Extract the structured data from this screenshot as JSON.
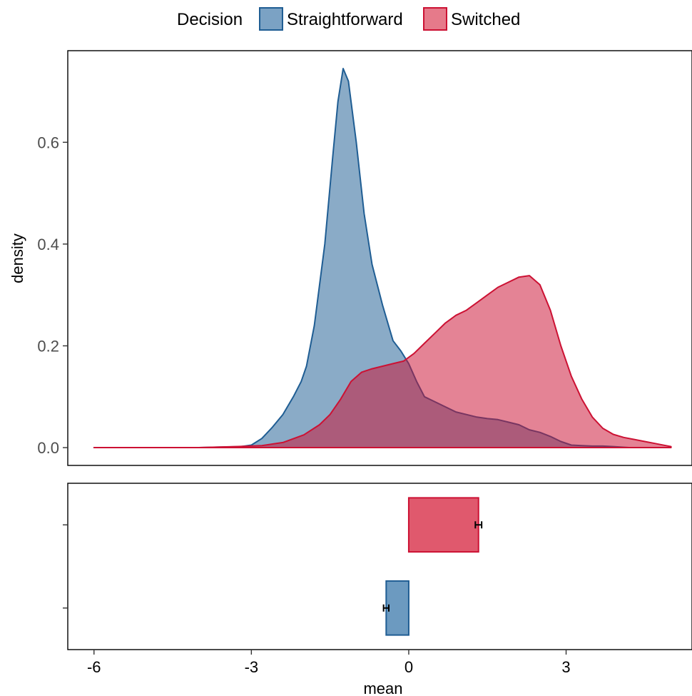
{
  "legend": {
    "title": "Decision",
    "items": [
      {
        "label": "Straightforward",
        "fill": "#7ba2c4",
        "stroke": "#1f5d93"
      },
      {
        "label": "Switched",
        "fill": "#e67a8a",
        "stroke": "#cc1133"
      }
    ]
  },
  "chart_data": [
    {
      "type": "area",
      "subtype": "density",
      "xlabel": "",
      "ylabel": "density",
      "xlim": [
        -6.5,
        5.4
      ],
      "ylim": [
        -0.035,
        0.78
      ],
      "yticks": [
        0.0,
        0.2,
        0.4,
        0.6
      ],
      "ytick_labels": [
        "0.0",
        "0.2",
        "0.4",
        "0.6"
      ],
      "series": [
        {
          "name": "Straightforward",
          "fill": "#1f5d93",
          "stroke": "#1f5d93",
          "opacity": 0.52,
          "x": [
            -6.0,
            -4.0,
            -3.2,
            -3.0,
            -2.8,
            -2.6,
            -2.4,
            -2.2,
            -2.05,
            -1.95,
            -1.8,
            -1.6,
            -1.45,
            -1.35,
            -1.25,
            -1.15,
            -1.0,
            -0.85,
            -0.7,
            -0.5,
            -0.3,
            -0.15,
            0.0,
            0.15,
            0.3,
            0.5,
            0.7,
            0.9,
            1.1,
            1.3,
            1.5,
            1.7,
            1.9,
            2.1,
            2.3,
            2.5,
            2.7,
            2.9,
            3.1,
            3.3,
            3.5,
            3.7,
            3.9,
            4.2
          ],
          "y": [
            0.0,
            0.0,
            0.002,
            0.005,
            0.018,
            0.04,
            0.065,
            0.1,
            0.13,
            0.16,
            0.24,
            0.4,
            0.57,
            0.68,
            0.745,
            0.72,
            0.6,
            0.46,
            0.36,
            0.28,
            0.21,
            0.19,
            0.165,
            0.13,
            0.1,
            0.09,
            0.08,
            0.07,
            0.065,
            0.06,
            0.057,
            0.055,
            0.05,
            0.045,
            0.035,
            0.03,
            0.022,
            0.012,
            0.005,
            0.004,
            0.003,
            0.003,
            0.002,
            0.0
          ]
        },
        {
          "name": "Switched",
          "fill": "#cc1133",
          "stroke": "#cc1133",
          "opacity": 0.52,
          "x": [
            -6.0,
            -5.0,
            -4.0,
            -3.3,
            -2.8,
            -2.4,
            -2.0,
            -1.7,
            -1.5,
            -1.3,
            -1.1,
            -0.9,
            -0.7,
            -0.5,
            -0.3,
            -0.1,
            0.1,
            0.3,
            0.5,
            0.7,
            0.9,
            1.1,
            1.3,
            1.5,
            1.7,
            1.9,
            2.1,
            2.3,
            2.5,
            2.7,
            2.9,
            3.1,
            3.3,
            3.5,
            3.7,
            3.9,
            4.1,
            4.3,
            4.5,
            4.7,
            4.9,
            5.0
          ],
          "y": [
            0.0,
            0.0,
            0.0,
            0.002,
            0.004,
            0.01,
            0.025,
            0.045,
            0.065,
            0.095,
            0.13,
            0.148,
            0.155,
            0.16,
            0.165,
            0.17,
            0.185,
            0.205,
            0.225,
            0.245,
            0.26,
            0.27,
            0.285,
            0.3,
            0.315,
            0.325,
            0.335,
            0.338,
            0.32,
            0.27,
            0.2,
            0.14,
            0.095,
            0.06,
            0.038,
            0.026,
            0.02,
            0.016,
            0.012,
            0.008,
            0.004,
            0.002
          ]
        }
      ]
    },
    {
      "type": "bar",
      "orientation": "horizontal",
      "xlabel": "mean",
      "ylabel": "",
      "xlim": [
        -6.5,
        5.4
      ],
      "xticks": [
        -6,
        -3,
        0,
        3
      ],
      "xtick_labels": [
        "-6",
        "-3",
        "0",
        "3"
      ],
      "categories": [
        "Switched",
        "Straightforward"
      ],
      "values": [
        1.33,
        -0.43
      ],
      "errors": [
        0.06,
        0.05
      ],
      "colors": [
        "#e0596d",
        "#6c9ac0"
      ],
      "strokes": [
        "#cc1133",
        "#1f5d93"
      ]
    }
  ]
}
